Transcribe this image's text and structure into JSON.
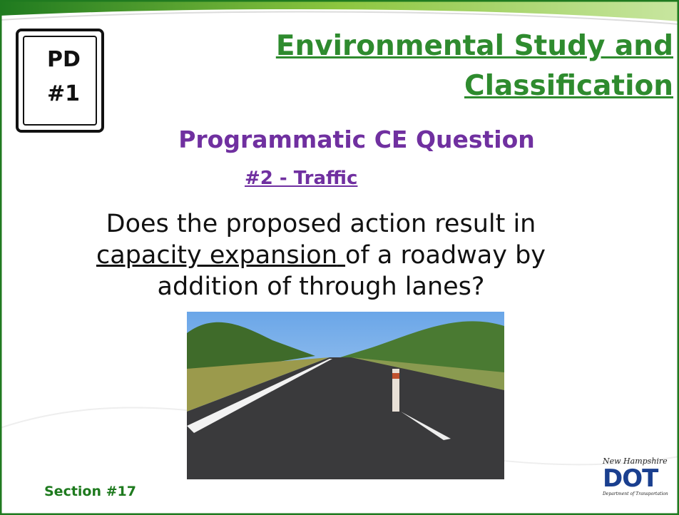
{
  "badge": {
    "line1": "PD",
    "line2": "#1"
  },
  "title": {
    "lines": [
      "Environmental Study and",
      "Classification"
    ]
  },
  "subtitle": "Programmatic CE Question",
  "question_label": "#2 - Traffic",
  "question": {
    "line1": "Does the proposed action result in",
    "underlined": "capacity expansion",
    "line2_rest": "of a roadway by",
    "line3": "addition of through lanes?"
  },
  "footer": "Section #17",
  "logo": {
    "script": "New Hampshire",
    "mark": "DOT",
    "caption": "Department of Transportation"
  }
}
